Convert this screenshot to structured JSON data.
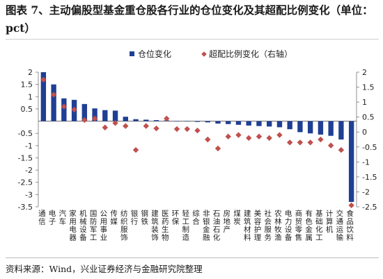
{
  "title": "图表 7、主动偏股型基金重仓股各行业的仓位变化及其超配比例变化（单位：pct）",
  "source": "资料来源：Wind，兴业证券经济与金融研究院整理",
  "colors": {
    "bar": "#1f3f94",
    "marker": "#c0504d"
  },
  "chart_data": {
    "type": "bar",
    "categories": [
      "通信",
      "电子",
      "汽车",
      "家用电器",
      "机械设备",
      "国防军工",
      "公用事业",
      "传媒",
      "纺织服饰",
      "银行",
      "钢铁",
      "建筑装饰",
      "医药生物",
      "环保",
      "轻工制造",
      "综合",
      "非银金融",
      "石油石化",
      "房地产",
      "煤炭",
      "建筑材料",
      "美容护理",
      "社会服务",
      "农林牧渔",
      "电力设备",
      "商贸零售",
      "有色金属",
      "基础化工",
      "计算机",
      "交通运输",
      "食品饮料"
    ],
    "series": [
      {
        "name": "仓位变化",
        "axis": "left",
        "type": "bar",
        "values": [
          2.0,
          1.5,
          0.93,
          0.87,
          0.7,
          0.52,
          0.45,
          0.43,
          0.18,
          0.08,
          0.06,
          0.04,
          0.03,
          0.0,
          -0.01,
          -0.03,
          -0.05,
          -0.1,
          -0.12,
          -0.15,
          -0.18,
          -0.2,
          -0.22,
          -0.25,
          -0.33,
          -0.45,
          -0.5,
          -0.55,
          -0.6,
          -0.75,
          -3.3
        ]
      },
      {
        "name": "超配比例变化（右轴）",
        "axis": "right",
        "type": "scatter",
        "values": [
          1.75,
          1.25,
          0.85,
          0.75,
          0.4,
          0.45,
          0.15,
          0.3,
          0.2,
          -0.6,
          0.2,
          0.12,
          0.45,
          0.1,
          0.1,
          0.05,
          -0.25,
          -0.55,
          -0.15,
          -0.1,
          -0.2,
          -0.15,
          -0.2,
          -0.1,
          -0.35,
          -0.35,
          -0.35,
          -0.25,
          -0.45,
          -0.6,
          -2.45
        ]
      }
    ],
    "y_left": {
      "min": -3.5,
      "max": 2.0,
      "ticks": [
        "-3.5",
        "-3",
        "-2.5",
        "-2",
        "-1.5",
        "-1",
        "-0.5",
        "0.5",
        "1",
        "1.5",
        "2"
      ],
      "tick_values": [
        -3.5,
        -3,
        -2.5,
        -2,
        -1.5,
        -1,
        -0.5,
        0.5,
        1,
        1.5,
        2
      ]
    },
    "y_right": {
      "min": -2.5,
      "max": 2.0,
      "ticks": [
        "-2.5",
        "-2",
        "-1.5",
        "-1",
        "-0.5",
        "0",
        "0.5",
        "1",
        "1.5",
        "2"
      ],
      "tick_values": [
        -2.5,
        -2,
        -1.5,
        -1,
        -0.5,
        0,
        0.5,
        1,
        1.5,
        2
      ]
    },
    "legend_position": "top-center",
    "grid": false
  }
}
